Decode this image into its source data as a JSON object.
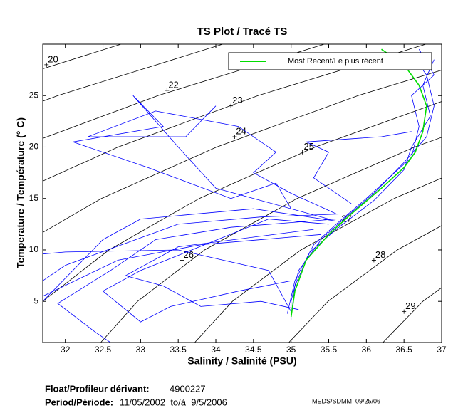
{
  "chart_data": {
    "type": "ts",
    "title": "TS Plot / Tracé TS",
    "x_label": "Salinity / Salinité (PSU)",
    "y_label": "Temperature / Température (° C)",
    "xlim": [
      31.7,
      37
    ],
    "ylim": [
      1,
      30
    ],
    "xticks": [
      32,
      32.5,
      33,
      33.5,
      34,
      34.5,
      35,
      35.5,
      36,
      36.5,
      37
    ],
    "yticks": [
      5,
      10,
      15,
      20,
      25
    ],
    "legend": "top-right",
    "profile_color": "#0000ff",
    "contour_color": "#000000",
    "contours": [
      {
        "level": 20,
        "label_S": 31.75,
        "label_T": 28,
        "S": [
          27.3,
          28.76,
          30.57,
          32.74
        ],
        "T": [
          15,
          20,
          25,
          30
        ]
      },
      {
        "level": 21,
        "S": [
          27.46,
          28.6,
          30.07,
          31.9,
          34.09
        ],
        "T": [
          10,
          15,
          20,
          25,
          30
        ]
      },
      {
        "level": 22,
        "label_S": 33.35,
        "label_T": 25.5,
        "S": [
          29.89,
          31.39,
          33.23,
          35.44
        ],
        "T": [
          15,
          20,
          25,
          30
        ]
      },
      {
        "level": 23,
        "label_S": 34.2,
        "label_T": 24,
        "S": [
          31.19,
          32.7,
          34.56,
          36.79
        ],
        "T": [
          15,
          20,
          25,
          30
        ]
      },
      {
        "level": 24,
        "label_S": 34.25,
        "label_T": 21,
        "S": [
          31.3,
          32.48,
          34.01,
          35.89,
          38.13
        ],
        "T": [
          10,
          15,
          20,
          25,
          30
        ]
      },
      {
        "level": 25,
        "label_S": 35.15,
        "label_T": 19.5,
        "S": [
          31.7,
          32.58,
          33.78,
          35.32,
          37.22
        ],
        "T": [
          5,
          10,
          15,
          20,
          25
        ]
      },
      {
        "level": 26,
        "label_S": 33.55,
        "label_T": 9,
        "S": [
          32.47,
          32.96,
          33.85,
          35.08,
          36.64,
          38.55
        ],
        "T": [
          1,
          5,
          10,
          15,
          20,
          25
        ]
      },
      {
        "level": 27,
        "label_S": 35.65,
        "label_T": 12.5,
        "S": [
          33.72,
          34.22,
          35.13,
          36.37,
          37.96
        ],
        "T": [
          1,
          5,
          10,
          15,
          20
        ]
      },
      {
        "level": 28,
        "label_S": 36.1,
        "label_T": 9,
        "S": [
          34.97,
          35.49,
          36.41,
          37.66
        ],
        "T": [
          1,
          5,
          10,
          15
        ]
      },
      {
        "level": 29,
        "label_S": 36.5,
        "label_T": 4,
        "S": [
          36.22,
          36.75,
          37.69
        ],
        "T": [
          1,
          5,
          10
        ]
      }
    ],
    "profiles": [
      {
        "S": [
          35.0,
          35.0,
          35.1,
          35.4,
          35.7,
          36.1,
          36.5,
          36.8,
          36.9,
          36.8,
          36.6
        ],
        "T": [
          3.2,
          5,
          8,
          11,
          13,
          15.5,
          18.5,
          21,
          24,
          27,
          29
        ]
      },
      {
        "S": [
          34.95,
          35.05,
          35.3,
          35.6,
          36.0,
          36.6,
          36.7,
          36.6,
          36.9,
          36.7
        ],
        "T": [
          3.8,
          7,
          10.5,
          12.5,
          15,
          19,
          22,
          25,
          27,
          29.5
        ]
      },
      {
        "S": [
          35.0,
          34.7,
          33.5,
          32.0,
          31.7
        ],
        "T": [
          4,
          8,
          10,
          9.8,
          9.6
        ]
      },
      {
        "S": [
          35.6,
          34.5,
          33.0,
          32.5,
          31.7
        ],
        "T": [
          12.8,
          14,
          13,
          11,
          5
        ]
      },
      {
        "S": [
          35.6,
          35.0,
          34.5,
          34.8,
          34.3,
          33.2,
          32.3,
          33.6,
          34.0
        ],
        "T": [
          13.5,
          15.5,
          17.5,
          19.5,
          22,
          23.5,
          21,
          21,
          24
        ]
      },
      {
        "S": [
          35.5,
          34.0,
          33.5,
          32.9,
          33.3,
          32.1,
          33.1,
          34.2,
          34.8,
          35.0
        ],
        "T": [
          13,
          16,
          20,
          25,
          22,
          20.5,
          18,
          15,
          16.5,
          14
        ]
      },
      {
        "S": [
          35.5,
          34.7,
          33.0,
          32.5,
          33.0,
          33.4,
          34.3,
          35.0
        ],
        "T": [
          12.5,
          13,
          8,
          6,
          3,
          4.5,
          6,
          7
        ]
      },
      {
        "S": [
          35.4,
          33.8,
          32.7,
          31.7
        ],
        "T": [
          11.5,
          10.5,
          9,
          5.5
        ]
      },
      {
        "S": [
          35.6,
          34.2,
          33.2,
          32.6,
          31.9,
          32.4,
          32.6
        ],
        "T": [
          13,
          12.2,
          11,
          8,
          4.8,
          2,
          1
        ]
      },
      {
        "S": [
          35.8,
          35.3,
          35.5,
          35.2,
          36.2,
          36.6
        ],
        "T": [
          14.5,
          17,
          19.5,
          20.5,
          21,
          21.5
        ]
      },
      {
        "S": [
          35.7,
          34.6,
          33.5,
          32.0,
          31.7
        ],
        "T": [
          13.5,
          13.2,
          12.5,
          8.5,
          7
        ]
      },
      {
        "S": [
          35.0,
          35.05,
          35.25,
          35.6,
          36.1,
          36.5,
          36.6,
          36.85,
          36.75,
          36.9
        ],
        "T": [
          3.5,
          6.5,
          9.8,
          12,
          14.8,
          17.8,
          20,
          23,
          26,
          28.5
        ]
      },
      {
        "S": [
          35.1,
          34.6,
          33.8,
          33.3,
          32.8,
          33.5,
          35.3
        ],
        "T": [
          4.2,
          5,
          4.5,
          6.5,
          7.5,
          10.3,
          12
        ]
      }
    ],
    "recent": {
      "name": "Most Recent/Le plus récent",
      "color": "#00dd00",
      "S": [
        35.0,
        35.05,
        35.2,
        35.5,
        35.8,
        36.2,
        36.5,
        36.65,
        36.75,
        36.8,
        36.7,
        36.5,
        36.2
      ],
      "T": [
        3.5,
        6,
        9,
        11.5,
        13.5,
        16,
        18,
        19.5,
        21.5,
        24,
        26,
        28,
        29.5
      ]
    }
  },
  "footer": {
    "float_label": "Float/Profileur dérivant:",
    "float_id": "4900227",
    "period_label": "Period/Période:",
    "period": "11/05/2002  to/à  9/5/2006",
    "stamp": "MEDS/SDMM  09/25/06"
  }
}
